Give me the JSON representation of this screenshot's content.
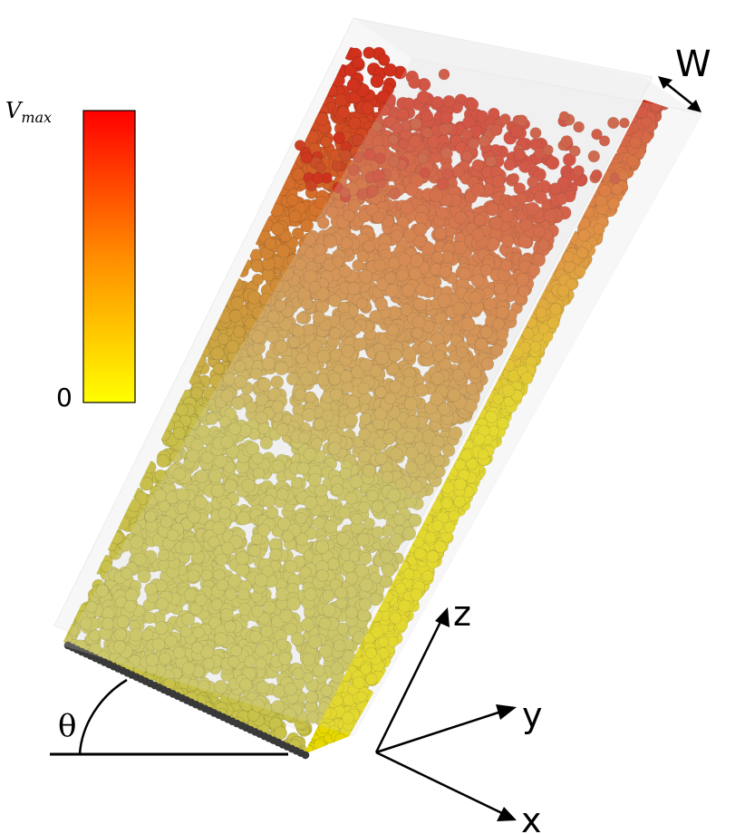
{
  "colorbar": {
    "max_label": "V",
    "max_label_sub": "max",
    "min_label": "0",
    "color_top": "#ff0000",
    "color_mid": "#ff8c00",
    "color_bottom": "#ffff00"
  },
  "labels": {
    "width": "W",
    "angle": "θ",
    "axis_x": "x",
    "axis_y": "y",
    "axis_z": "z"
  },
  "colors": {
    "grain_static": "#c8c24a",
    "grain_wall": "#e6d800",
    "grain_fast": "#d0301c",
    "base_row": "#3a3a3a",
    "plate": "#e6e6e6"
  }
}
